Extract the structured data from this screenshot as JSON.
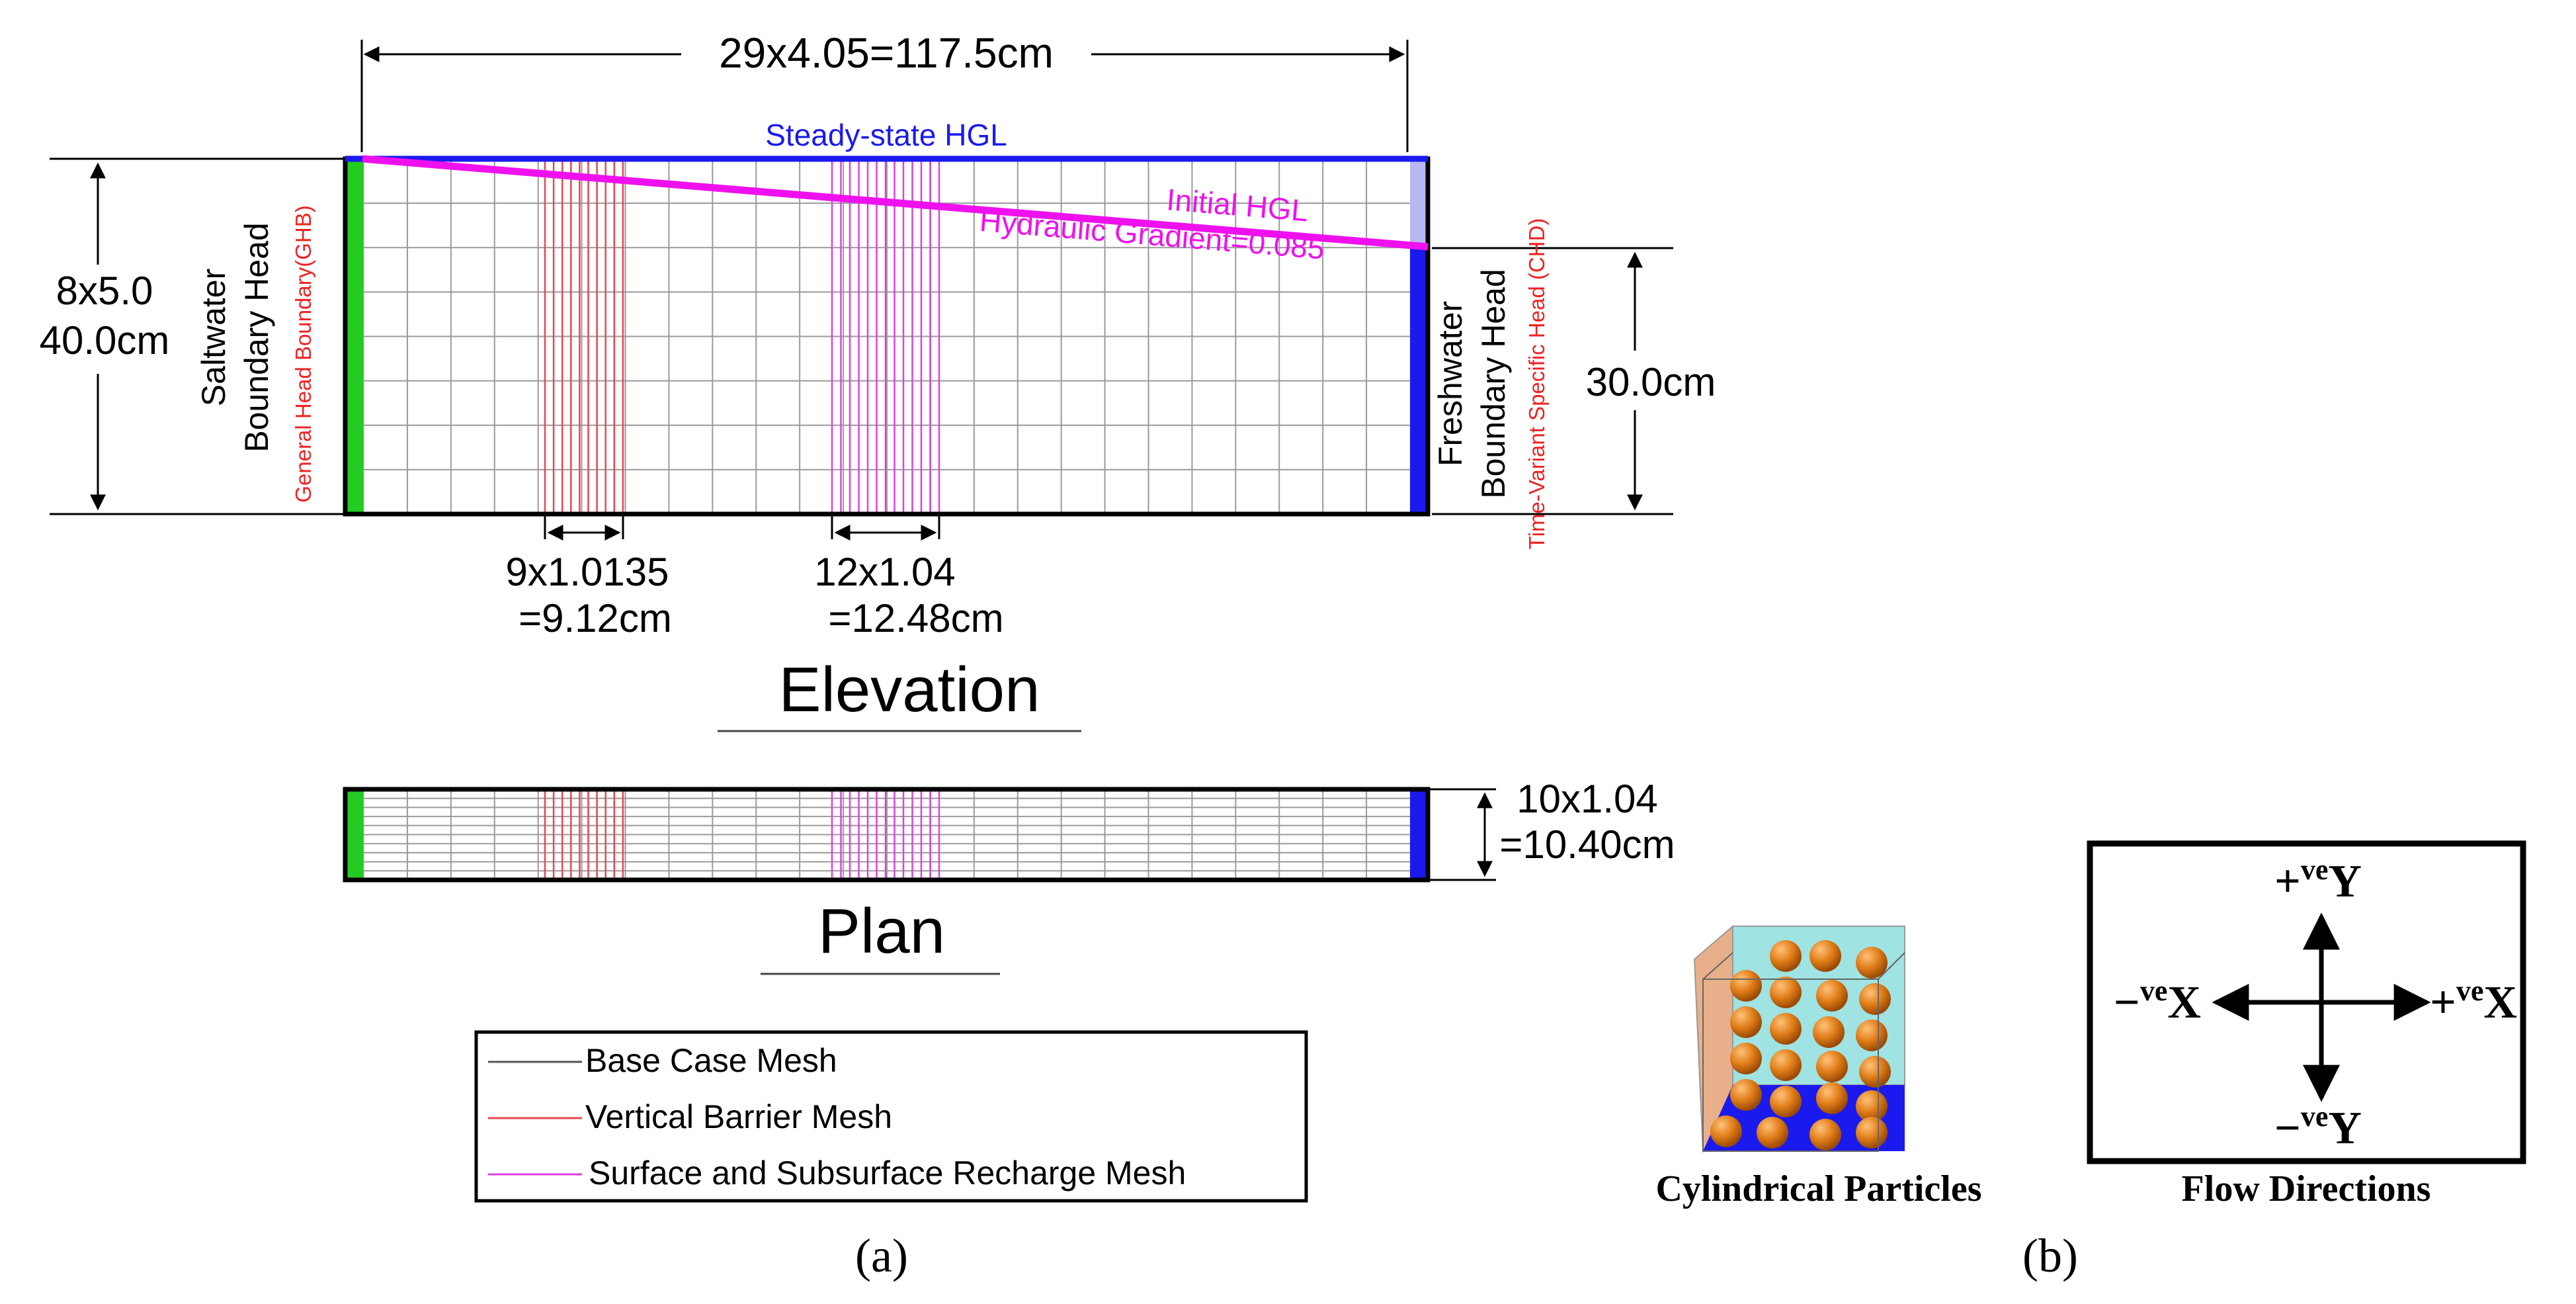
{
  "elevation": {
    "top_dimension": "29x4.05=117.5cm",
    "steady_state_label": "Steady-state HGL",
    "initial_hgl_label": "Initial HGL",
    "gradient_label": "Hydraulic Gradient=0.085",
    "left_dim_line1": "8x5.0",
    "left_dim_line2": "40.0cm",
    "right_dim": "30.0cm",
    "saltwater_line1": "Saltwater",
    "saltwater_line2": "Boundary Head",
    "ghb_label": "General Head Boundary(GHB)",
    "freshwater_line1": "Freshwater",
    "freshwater_line2": "Boundary Head",
    "chd_label": "Time-Variant Specific Head (CHD)",
    "barrier_dim_line1": "9x1.0135",
    "barrier_dim_line2": "=9.12cm",
    "recharge_dim_line1": "12x1.04",
    "recharge_dim_line2": "=12.48cm",
    "title": "Elevation"
  },
  "plan": {
    "dim_line1": "10x1.04",
    "dim_line2": "=10.40cm",
    "title": "Plan"
  },
  "legend": {
    "items": [
      {
        "label": "Base Case Mesh",
        "color": "#555555"
      },
      {
        "label": "Vertical Barrier Mesh",
        "color": "#e8474f"
      },
      {
        "label": "Surface and Subsurface Recharge Mesh",
        "color": "#e040e0"
      }
    ]
  },
  "panel_a_label": "(a)",
  "panel_b_label": "(b)",
  "particles_caption": "Cylindrical Particles",
  "flow": {
    "caption": "Flow Directions",
    "plus_y": "+veY",
    "minus_y": "−veY",
    "plus_x": "+veX",
    "minus_x": "−veX"
  },
  "colors": {
    "saltwater_boundary": "#22cc22",
    "freshwater_boundary": "#1a1aee",
    "steady_hgl": "#1a1aee",
    "initial_hgl": "#ee11ee",
    "barrier_mesh": "#e8474f",
    "recharge_mesh": "#e040e0",
    "base_mesh": "#9a9a9a",
    "annotation_red": "#ee2222",
    "particle_orange": "#e07d18"
  }
}
